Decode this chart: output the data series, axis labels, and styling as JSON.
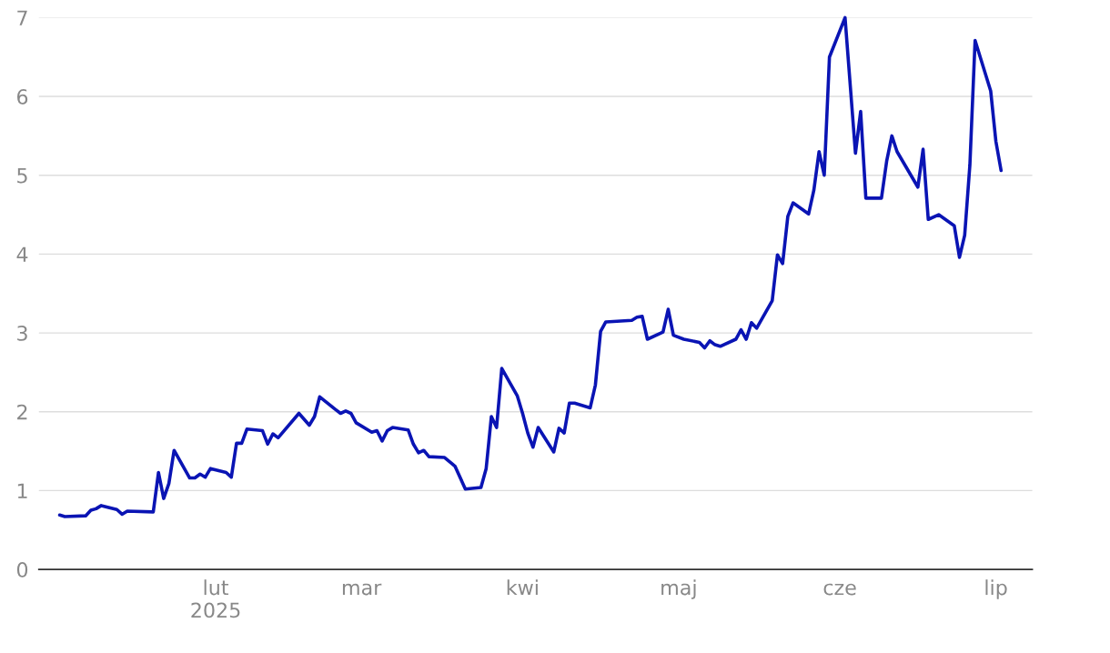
{
  "chart_data": {
    "type": "line",
    "x": [
      "2025-01-02",
      "2025-01-03",
      "2025-01-07",
      "2025-01-08",
      "2025-01-09",
      "2025-01-10",
      "2025-01-13",
      "2025-01-14",
      "2025-01-15",
      "2025-01-20",
      "2025-01-21",
      "2025-01-22",
      "2025-01-23",
      "2025-01-24",
      "2025-01-27",
      "2025-01-28",
      "2025-01-29",
      "2025-01-30",
      "2025-01-31",
      "2025-02-03",
      "2025-02-04",
      "2025-02-05",
      "2025-02-06",
      "2025-02-07",
      "2025-02-10",
      "2025-02-11",
      "2025-02-12",
      "2025-02-13",
      "2025-02-17",
      "2025-02-19",
      "2025-02-20",
      "2025-02-21",
      "2025-02-24",
      "2025-02-25",
      "2025-02-26",
      "2025-02-27",
      "2025-02-28",
      "2025-03-03",
      "2025-03-04",
      "2025-03-05",
      "2025-03-06",
      "2025-03-07",
      "2025-03-10",
      "2025-03-11",
      "2025-03-12",
      "2025-03-13",
      "2025-03-14",
      "2025-03-17",
      "2025-03-19",
      "2025-03-21",
      "2025-03-24",
      "2025-03-25",
      "2025-03-26",
      "2025-03-27",
      "2025-03-28",
      "2025-03-31",
      "2025-04-01",
      "2025-04-02",
      "2025-04-03",
      "2025-04-04",
      "2025-04-07",
      "2025-04-08",
      "2025-04-09",
      "2025-04-10",
      "2025-04-11",
      "2025-04-14",
      "2025-04-15",
      "2025-04-16",
      "2025-04-17",
      "2025-04-22",
      "2025-04-23",
      "2025-04-24",
      "2025-04-25",
      "2025-04-28",
      "2025-04-29",
      "2025-04-30",
      "2025-05-02",
      "2025-05-05",
      "2025-05-06",
      "2025-05-07",
      "2025-05-08",
      "2025-05-09",
      "2025-05-12",
      "2025-05-13",
      "2025-05-14",
      "2025-05-15",
      "2025-05-16",
      "2025-05-19",
      "2025-05-20",
      "2025-05-21",
      "2025-05-22",
      "2025-05-23",
      "2025-05-26",
      "2025-05-27",
      "2025-05-28",
      "2025-05-29",
      "2025-05-30",
      "2025-06-02",
      "2025-06-04",
      "2025-06-05",
      "2025-06-06",
      "2025-06-09",
      "2025-06-10",
      "2025-06-11",
      "2025-06-12",
      "2025-06-16",
      "2025-06-17",
      "2025-06-18",
      "2025-06-20",
      "2025-06-23",
      "2025-06-24",
      "2025-06-25",
      "2025-06-26",
      "2025-06-27",
      "2025-06-30",
      "2025-07-01",
      "2025-07-02"
    ],
    "series": [
      {
        "color": "#0a14b4",
        "values": [
          0.69,
          0.67,
          0.68,
          0.75,
          0.77,
          0.81,
          0.76,
          0.7,
          0.74,
          0.73,
          1.23,
          0.9,
          1.09,
          1.51,
          1.16,
          1.16,
          1.21,
          1.17,
          1.28,
          1.23,
          1.17,
          1.6,
          1.6,
          1.78,
          1.76,
          1.59,
          1.72,
          1.67,
          1.98,
          1.83,
          1.94,
          2.19,
          2.03,
          1.98,
          2.01,
          1.98,
          1.86,
          1.74,
          1.76,
          1.63,
          1.76,
          1.8,
          1.77,
          1.59,
          1.48,
          1.51,
          1.43,
          1.42,
          1.31,
          1.02,
          1.04,
          1.28,
          1.94,
          1.8,
          2.55,
          2.2,
          1.98,
          1.73,
          1.55,
          1.8,
          1.49,
          1.79,
          1.73,
          2.11,
          2.11,
          2.05,
          2.34,
          3.02,
          3.14,
          3.16,
          3.2,
          3.21,
          2.92,
          3.01,
          3.3,
          2.97,
          2.92,
          2.88,
          2.81,
          2.9,
          2.85,
          2.83,
          2.92,
          3.04,
          2.92,
          3.13,
          3.06,
          3.41,
          3.99,
          3.88,
          4.48,
          4.65,
          4.51,
          4.81,
          5.3,
          5.0,
          6.5,
          7.0,
          5.28,
          5.81,
          4.71,
          4.71,
          5.18,
          5.5,
          5.3,
          4.85,
          5.33,
          4.44,
          4.5,
          4.36,
          3.96,
          4.24,
          5.13,
          6.71,
          6.07,
          5.43,
          5.06
        ]
      }
    ],
    "xlim": [
      "2024-12-29",
      "2025-07-08"
    ],
    "xticks": [
      {
        "value": "2025-02-01",
        "label": "lut\n2025"
      },
      {
        "value": "2025-03-01",
        "label": "mar"
      },
      {
        "value": "2025-04-01",
        "label": "kwi"
      },
      {
        "value": "2025-05-01",
        "label": "maj"
      },
      {
        "value": "2025-06-01",
        "label": "cze"
      },
      {
        "value": "2025-07-01",
        "label": "lip"
      }
    ],
    "ylim": [
      0,
      7
    ],
    "yticks": [
      0,
      1,
      2,
      3,
      4,
      5,
      6,
      7
    ],
    "grid": "y",
    "marker": "none",
    "line_style": "solid"
  }
}
